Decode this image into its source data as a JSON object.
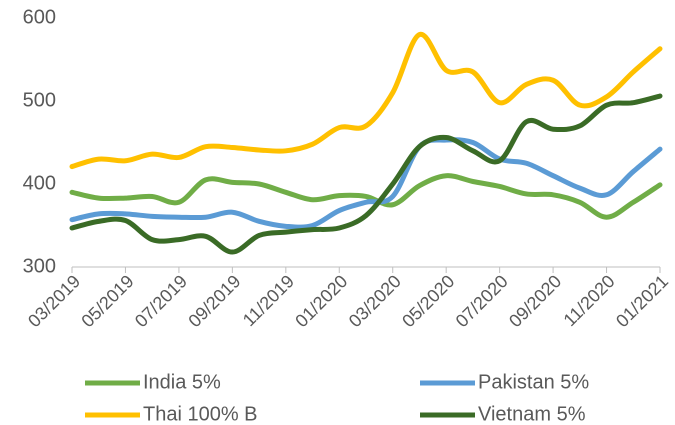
{
  "chart_data": {
    "type": "line",
    "categories": [
      "03/2019",
      null,
      "05/2019",
      null,
      "07/2019",
      null,
      "09/2019",
      null,
      "11/2019",
      null,
      "01/2020",
      null,
      "03/2020",
      null,
      "05/2020",
      null,
      "07/2020",
      null,
      "09/2020",
      null,
      "11/2020",
      null,
      "01/2021"
    ],
    "series": [
      {
        "name": "India 5%",
        "color": "#70ad47",
        "values": [
          390,
          383,
          383,
          385,
          378,
          405,
          402,
          400,
          390,
          381,
          386,
          385,
          375,
          398,
          410,
          403,
          397,
          388,
          387,
          378,
          360,
          378,
          399
        ]
      },
      {
        "name": "Pakistan 5%",
        "color": "#5b9bd5",
        "values": [
          357,
          364,
          364,
          361,
          360,
          360,
          366,
          355,
          349,
          350,
          368,
          378,
          385,
          445,
          453,
          450,
          430,
          425,
          410,
          395,
          387,
          415,
          442
        ]
      },
      {
        "name": "Thai 100% B",
        "color": "#ffc000",
        "values": [
          421,
          430,
          428,
          436,
          432,
          445,
          444,
          441,
          440,
          448,
          468,
          470,
          510,
          580,
          537,
          535,
          498,
          520,
          525,
          495,
          505,
          535,
          563
        ]
      },
      {
        "name": "Vietnam 5%",
        "color": "#3a6b26",
        "values": [
          347,
          355,
          356,
          333,
          333,
          337,
          318,
          338,
          342,
          345,
          347,
          362,
          400,
          445,
          456,
          440,
          428,
          475,
          466,
          470,
          495,
          498,
          506
        ]
      }
    ],
    "ylim": [
      300,
      600
    ],
    "yticks": [
      300,
      400,
      500,
      600
    ],
    "grid": false,
    "legend": "bottom"
  }
}
